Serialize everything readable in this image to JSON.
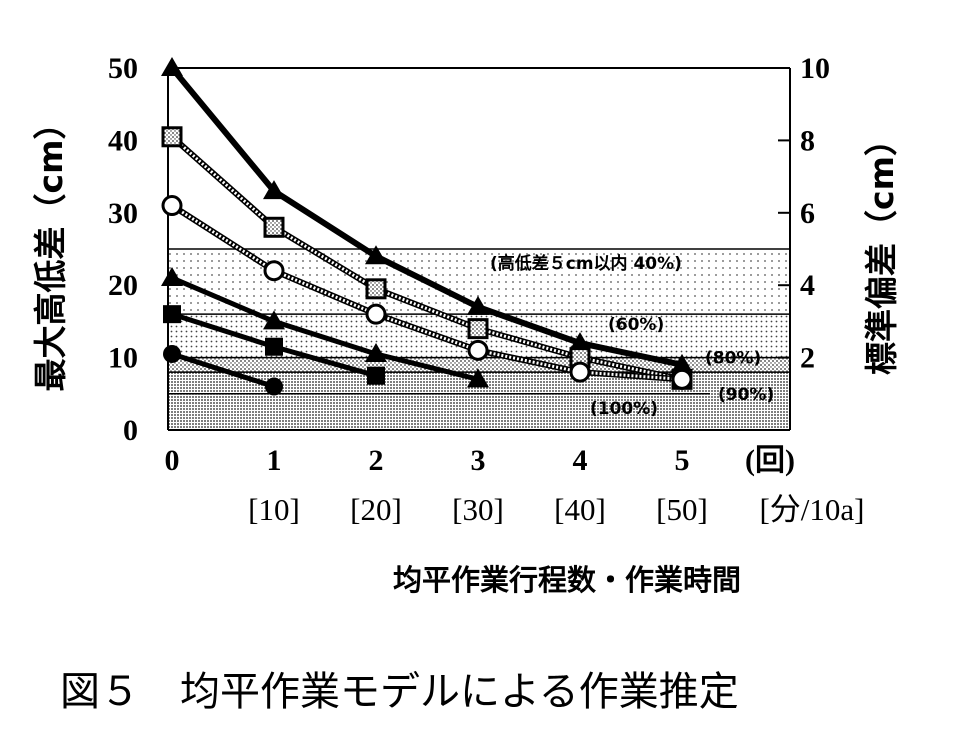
{
  "chart_data": {
    "type": "line",
    "title": "",
    "caption": "図５　均平作業モデルによる作業推定",
    "ylabel_left": "最大高低差（cm）",
    "ylabel_right": "標準偏差（cm）",
    "xlabel": "均平作業行程数・作業時間",
    "x_ticks": [
      "0",
      "1",
      "2",
      "3",
      "4",
      "5"
    ],
    "x_unit": "(回)",
    "x_time_ticks": [
      "[10]",
      "[20]",
      "[30]",
      "[40]",
      "[50]"
    ],
    "x_time_unit": "[分/10a]",
    "xlim": [
      0,
      6
    ],
    "ylim_left": [
      0,
      50
    ],
    "ylim_right": [
      0,
      10
    ],
    "y_ticks_left": [
      "0",
      "10",
      "20",
      "30",
      "40",
      "50"
    ],
    "y_ticks_right": [
      "2",
      "4",
      "6",
      "8",
      "10"
    ],
    "grid": false,
    "bands": [
      {
        "label": "(高低差５cm以内 40%)",
        "from": 0,
        "to": 25
      },
      {
        "label": "(60%)",
        "from": 0,
        "to": 16
      },
      {
        "label": "(80%)",
        "from": 0,
        "to": 10
      },
      {
        "label": "(90%)",
        "from": 0,
        "to": 8
      },
      {
        "label": "(100%)",
        "from": 0,
        "to": 5
      }
    ],
    "series": [
      {
        "marker": "triangle",
        "style": "solid-thick",
        "x": [
          0,
          1,
          2,
          3,
          4,
          5
        ],
        "y": [
          50,
          33,
          24,
          17,
          12,
          9
        ]
      },
      {
        "marker": "square",
        "style": "dotted",
        "x": [
          0,
          1,
          2,
          3,
          4,
          5
        ],
        "y": [
          40.5,
          28,
          19.5,
          14,
          10,
          7
        ]
      },
      {
        "marker": "circle",
        "style": "dotted",
        "x": [
          0,
          1,
          2,
          3,
          4,
          5
        ],
        "y": [
          31,
          22,
          16,
          11,
          8,
          7
        ]
      },
      {
        "marker": "triangle",
        "style": "solid",
        "x": [
          0,
          1,
          2,
          3
        ],
        "y": [
          21,
          15,
          10.5,
          7
        ]
      },
      {
        "marker": "square",
        "style": "solid",
        "x": [
          0,
          1,
          2
        ],
        "y": [
          16,
          11.5,
          7.5
        ]
      },
      {
        "marker": "circle",
        "style": "solid",
        "x": [
          0,
          1
        ],
        "y": [
          10.5,
          6
        ]
      }
    ]
  }
}
